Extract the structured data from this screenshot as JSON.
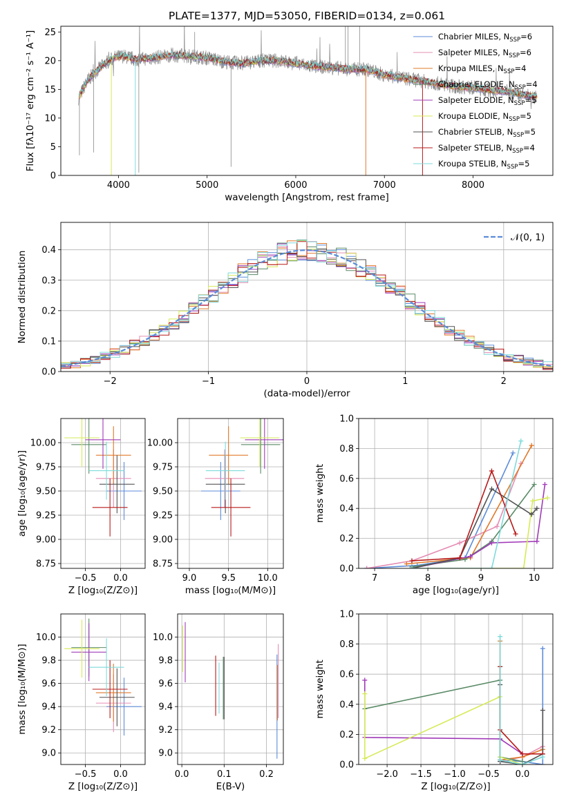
{
  "figure": {
    "title": "PLATE=1377, MJD=53050, FIBERID=0134, z=0.061"
  },
  "colors": {
    "chabrier_miles": "#5b8bd8",
    "salpeter_miles": "#e58cb3",
    "kroupa_miles": "#e07828",
    "chabrier_elodie": "#5a8a66",
    "salpeter_elodie": "#a03ab8",
    "kroupa_elodie": "#d6ea55",
    "chabrier_stelib": "#505050",
    "salpeter_stelib": "#b81818",
    "kroupa_stelib": "#7edada",
    "data": "#888888",
    "normal": "#5b8bd8",
    "grid": "#b0b0b0"
  },
  "chart_data": [
    {
      "id": "spectrum",
      "type": "line",
      "xlabel": "wavelength [Angstrom, rest frame]",
      "ylabel": "Flux [fλ10⁻¹⁷ erg cm⁻² s⁻¹ A⁻¹]",
      "xlim": [
        3350,
        8900
      ],
      "ylim": [
        0,
        26
      ],
      "x_ticks": [
        "4000",
        "5000",
        "6000",
        "7000",
        "8000"
      ],
      "y_ticks": [
        "0",
        "5",
        "10",
        "15",
        "20",
        "25"
      ],
      "grid": false,
      "legend_position": "top-right",
      "legend": [
        {
          "name": "Chabrier MILES",
          "n": "6",
          "color_key": "chabrier_miles"
        },
        {
          "name": "Salpeter MILES",
          "n": "6",
          "color_key": "salpeter_miles"
        },
        {
          "name": "Kroupa MILES",
          "n": "4",
          "color_key": "kroupa_miles"
        },
        {
          "name": "Chabrier ELODIE",
          "n": "4",
          "color_key": "chabrier_elodie"
        },
        {
          "name": "Salpeter ELODIE",
          "n": "5",
          "color_key": "salpeter_elodie"
        },
        {
          "name": "Kroupa ELODIE",
          "n": "5",
          "color_key": "kroupa_elodie"
        },
        {
          "name": "Chabrier STELIB",
          "n": "5",
          "color_key": "chabrier_stelib"
        },
        {
          "name": "Salpeter STELIB",
          "n": "4",
          "color_key": "salpeter_stelib"
        },
        {
          "name": "Kroupa STELIB",
          "n": "5",
          "color_key": "kroupa_stelib"
        }
      ],
      "continuum": [
        [
          3550,
          13.5
        ],
        [
          3650,
          16.5
        ],
        [
          3750,
          18.2
        ],
        [
          3850,
          19.5
        ],
        [
          3950,
          20.5
        ],
        [
          4050,
          20.8
        ],
        [
          4200,
          20.2
        ],
        [
          4400,
          20.5
        ],
        [
          4600,
          21.0
        ],
        [
          4800,
          20.8
        ],
        [
          5000,
          20.5
        ],
        [
          5200,
          19.8
        ],
        [
          5400,
          19.5
        ],
        [
          5600,
          20.0
        ],
        [
          5800,
          20.0
        ],
        [
          6000,
          19.5
        ],
        [
          6200,
          19.0
        ],
        [
          6400,
          18.8
        ],
        [
          6600,
          18.5
        ],
        [
          6800,
          18.5
        ],
        [
          7000,
          17.5
        ],
        [
          7200,
          17.0
        ],
        [
          7400,
          16.5
        ],
        [
          7600,
          16.0
        ],
        [
          7800,
          15.5
        ],
        [
          8000,
          15.3
        ],
        [
          8200,
          14.8
        ],
        [
          8400,
          14.6
        ],
        [
          8600,
          14.0
        ],
        [
          8700,
          13.8
        ]
      ],
      "model_drops": [
        {
          "x": 3920,
          "y": 0,
          "color_key": "kroupa_elodie"
        },
        {
          "x": 4190,
          "y": 0,
          "color_key": "kroupa_stelib"
        },
        {
          "x": 6790,
          "y": 0,
          "color_key": "kroupa_miles"
        },
        {
          "x": 7430,
          "y": 0,
          "color_key": "salpeter_stelib"
        }
      ]
    },
    {
      "id": "residuals",
      "type": "line",
      "xlabel": "(data-model)/error",
      "ylabel": "Normed distribution",
      "xlim": [
        -2.5,
        2.5
      ],
      "ylim": [
        0,
        0.49
      ],
      "x_ticks": [
        "−2",
        "−1",
        "0",
        "1",
        "2"
      ],
      "y_ticks": [
        "0.0",
        "0.1",
        "0.2",
        "0.3",
        "0.4"
      ],
      "grid": true,
      "legend_position": "top-right",
      "legend": [
        {
          "name": "𝒩(0, 1)",
          "style": "dashed",
          "color_key": "normal"
        }
      ],
      "bin_width": 0.1
    },
    {
      "id": "age_vs_Z",
      "type": "scatter",
      "xlabel": "Z [log₁₀(Z/Z⊙)]",
      "ylabel": "age  [log₁₀(age/yr)]",
      "xlim": [
        -0.85,
        0.35
      ],
      "ylim": [
        8.7,
        10.25
      ],
      "x_ticks": [
        "−0.5",
        "0.0"
      ],
      "y_ticks": [
        "8.75",
        "9.00",
        "9.25",
        "9.50",
        "9.75",
        "10.00"
      ],
      "grid": true,
      "points": [
        {
          "x": 0.05,
          "y": 9.5,
          "xerr": 0.5,
          "yerr": 0.3,
          "color_key": "chabrier_miles"
        },
        {
          "x": -0.1,
          "y": 9.63,
          "xerr": 0.5,
          "yerr": 0.3,
          "color_key": "salpeter_miles"
        },
        {
          "x": -0.1,
          "y": 9.87,
          "xerr": 0.5,
          "yerr": 0.3,
          "color_key": "kroupa_miles"
        },
        {
          "x": -0.45,
          "y": 9.98,
          "xerr": 0.5,
          "yerr": 0.3,
          "color_key": "chabrier_elodie"
        },
        {
          "x": -0.25,
          "y": 10.03,
          "xerr": 0.5,
          "yerr": 0.3,
          "color_key": "salpeter_elodie"
        },
        {
          "x": -0.55,
          "y": 10.05,
          "xerr": 0.5,
          "yerr": 0.3,
          "color_key": "kroupa_elodie"
        },
        {
          "x": -0.05,
          "y": 9.57,
          "xerr": 0.5,
          "yerr": 0.3,
          "color_key": "chabrier_stelib"
        },
        {
          "x": -0.15,
          "y": 9.33,
          "xerr": 0.5,
          "yerr": 0.3,
          "color_key": "salpeter_stelib"
        },
        {
          "x": -0.2,
          "y": 9.71,
          "xerr": 0.5,
          "yerr": 0.3,
          "color_key": "kroupa_stelib"
        }
      ]
    },
    {
      "id": "age_vs_mass",
      "type": "scatter",
      "xlabel": "mass [log₁₀(M/M⊙)]",
      "ylabel": "",
      "xlim": [
        8.85,
        10.2
      ],
      "ylim": [
        8.7,
        10.25
      ],
      "x_ticks": [
        "9.0",
        "9.5",
        "10.0"
      ],
      "y_ticks": [
        "8.75",
        "9.00",
        "9.25",
        "9.50",
        "9.75",
        "10.00"
      ],
      "grid": true,
      "points": [
        {
          "x": 9.4,
          "y": 9.5,
          "xerr": 0.5,
          "yerr": 0.3,
          "color_key": "chabrier_miles"
        },
        {
          "x": 9.45,
          "y": 9.63,
          "xerr": 0.5,
          "yerr": 0.3,
          "color_key": "salpeter_miles"
        },
        {
          "x": 9.5,
          "y": 9.87,
          "xerr": 0.5,
          "yerr": 0.3,
          "color_key": "kroupa_miles"
        },
        {
          "x": 9.91,
          "y": 9.98,
          "xerr": 0.5,
          "yerr": 0.3,
          "color_key": "chabrier_elodie"
        },
        {
          "x": 9.96,
          "y": 10.03,
          "xerr": 0.5,
          "yerr": 0.3,
          "color_key": "salpeter_elodie"
        },
        {
          "x": 9.9,
          "y": 10.05,
          "xerr": 0.5,
          "yerr": 0.3,
          "color_key": "kroupa_elodie"
        },
        {
          "x": 9.46,
          "y": 9.57,
          "xerr": 0.5,
          "yerr": 0.3,
          "color_key": "chabrier_stelib"
        },
        {
          "x": 9.53,
          "y": 9.33,
          "xerr": 0.5,
          "yerr": 0.3,
          "color_key": "salpeter_stelib"
        },
        {
          "x": 9.46,
          "y": 9.71,
          "xerr": 0.5,
          "yerr": 0.3,
          "color_key": "kroupa_stelib"
        }
      ]
    },
    {
      "id": "mass_weight_vs_age",
      "type": "line",
      "xlabel": "age  [log₁₀(age/yr)]",
      "ylabel": "mass weight",
      "xlim": [
        6.7,
        10.35
      ],
      "ylim": [
        0,
        1
      ],
      "x_ticks": [
        "7",
        "8",
        "9",
        "10"
      ],
      "y_ticks": [
        "0.0",
        "0.2",
        "0.4",
        "0.6",
        "0.8",
        "1.0"
      ],
      "grid": true,
      "series": [
        {
          "color_key": "chabrier_miles",
          "x": [
            6.85,
            7.8,
            8.7,
            9.6
          ],
          "y": [
            0.0,
            0.02,
            0.07,
            0.77
          ]
        },
        {
          "color_key": "salpeter_miles",
          "x": [
            6.85,
            7.7,
            8.6,
            9.3,
            9.75
          ],
          "y": [
            0.0,
            0.05,
            0.17,
            0.28,
            0.7
          ]
        },
        {
          "color_key": "kroupa_miles",
          "x": [
            7.6,
            8.8,
            9.95
          ],
          "y": [
            0.03,
            0.07,
            0.82
          ]
        },
        {
          "color_key": "chabrier_elodie",
          "x": [
            7.7,
            8.7,
            9.2,
            10.0
          ],
          "y": [
            0.01,
            0.06,
            0.18,
            0.56
          ]
        },
        {
          "color_key": "salpeter_elodie",
          "x": [
            7.7,
            8.8,
            9.2,
            10.05,
            10.2
          ],
          "y": [
            0.0,
            0.08,
            0.17,
            0.18,
            0.56
          ]
        },
        {
          "color_key": "kroupa_elodie",
          "x": [
            7.7,
            9.8,
            9.97,
            10.25
          ],
          "y": [
            0.0,
            0.0,
            0.45,
            0.47
          ]
        },
        {
          "color_key": "chabrier_stelib",
          "x": [
            7.7,
            8.6,
            9.2,
            9.95,
            10.05
          ],
          "y": [
            0.0,
            0.07,
            0.53,
            0.36,
            0.4
          ]
        },
        {
          "color_key": "salpeter_stelib",
          "x": [
            7.7,
            8.6,
            9.2,
            9.65
          ],
          "y": [
            0.05,
            0.07,
            0.65,
            0.23
          ]
        },
        {
          "color_key": "kroupa_stelib",
          "x": [
            7.7,
            9.2,
            9.75
          ],
          "y": [
            0.0,
            0.0,
            0.85
          ]
        }
      ]
    },
    {
      "id": "mass_vs_Z",
      "type": "scatter",
      "xlabel": "Z [log₁₀(Z/Z⊙)]",
      "ylabel": "mass [log₁₀(M/M⊙)]",
      "xlim": [
        -0.85,
        0.35
      ],
      "ylim": [
        8.9,
        10.2
      ],
      "x_ticks": [
        "−0.5",
        "0.0"
      ],
      "y_ticks": [
        "9.0",
        "9.2",
        "9.4",
        "9.6",
        "9.8",
        "10.0"
      ],
      "grid": true,
      "points": [
        {
          "x": 0.05,
          "y": 9.4,
          "xerr": 0.5,
          "yerr": 0.25,
          "color_key": "chabrier_miles"
        },
        {
          "x": -0.1,
          "y": 9.43,
          "xerr": 0.5,
          "yerr": 0.25,
          "color_key": "salpeter_miles"
        },
        {
          "x": -0.1,
          "y": 9.52,
          "xerr": 0.5,
          "yerr": 0.25,
          "color_key": "kroupa_miles"
        },
        {
          "x": -0.45,
          "y": 9.91,
          "xerr": 0.5,
          "yerr": 0.25,
          "color_key": "chabrier_elodie"
        },
        {
          "x": -0.45,
          "y": 9.87,
          "xerr": 0.5,
          "yerr": 0.25,
          "color_key": "salpeter_elodie"
        },
        {
          "x": -0.55,
          "y": 9.9,
          "xerr": 0.5,
          "yerr": 0.25,
          "color_key": "kroupa_elodie"
        },
        {
          "x": -0.05,
          "y": 9.48,
          "xerr": 0.5,
          "yerr": 0.25,
          "color_key": "chabrier_stelib"
        },
        {
          "x": -0.15,
          "y": 9.55,
          "xerr": 0.5,
          "yerr": 0.25,
          "color_key": "salpeter_stelib"
        },
        {
          "x": -0.2,
          "y": 9.74,
          "xerr": 0.5,
          "yerr": 0.25,
          "color_key": "kroupa_stelib"
        }
      ]
    },
    {
      "id": "mass_vs_ebv",
      "type": "scatter",
      "xlabel": "E(B-V)",
      "ylabel": "",
      "xlim": [
        -0.01,
        0.24
      ],
      "ylim": [
        8.9,
        10.2
      ],
      "x_ticks": [
        "0.0",
        "0.1",
        "0.2"
      ],
      "y_ticks": [
        "9.0",
        "9.2",
        "9.4",
        "9.6",
        "9.8",
        "10.0"
      ],
      "grid": true,
      "points": [
        {
          "x": 0.225,
          "y": 9.4,
          "yerr": 0.45,
          "color_key": "chabrier_miles"
        },
        {
          "x": 0.228,
          "y": 9.62,
          "yerr": 0.32,
          "color_key": "salpeter_miles"
        },
        {
          "x": 0.226,
          "y": 9.52,
          "yerr": 0.24,
          "color_key": "kroupa_miles"
        },
        {
          "x": 0.098,
          "y": 9.56,
          "yerr": 0.27,
          "color_key": "chabrier_elodie"
        },
        {
          "x": 0.008,
          "y": 9.87,
          "yerr": 0.26,
          "color_key": "salpeter_elodie"
        },
        {
          "x": 0.002,
          "y": 9.9,
          "yerr": 0.2,
          "color_key": "kroupa_elodie"
        },
        {
          "x": 0.1,
          "y": 9.56,
          "yerr": 0.27,
          "color_key": "chabrier_stelib"
        },
        {
          "x": 0.08,
          "y": 9.58,
          "yerr": 0.26,
          "color_key": "salpeter_stelib"
        },
        {
          "x": 0.088,
          "y": 9.56,
          "yerr": 0.22,
          "color_key": "kroupa_stelib"
        }
      ]
    },
    {
      "id": "mass_weight_vs_Z",
      "type": "line",
      "xlabel": "Z [log₁₀(Z/Z⊙)]",
      "ylabel": "mass weight",
      "xlim": [
        -2.42,
        0.45
      ],
      "ylim": [
        0,
        1
      ],
      "x_ticks": [
        "−2.0",
        "−1.5",
        "−1.0",
        "−0.5",
        "0.0"
      ],
      "y_ticks": [
        "0.0",
        "0.2",
        "0.4",
        "0.6",
        "0.8",
        "1.0"
      ],
      "grid": true,
      "series": [
        {
          "color_key": "chabrier_miles",
          "x": [
            -0.33,
            0.0,
            0.3,
            0.3
          ],
          "y": [
            0.03,
            0.02,
            0.0,
            0.77
          ]
        },
        {
          "color_key": "salpeter_miles",
          "x": [
            -0.33,
            0.0,
            0.3
          ],
          "y": [
            0.02,
            0.05,
            0.12
          ]
        },
        {
          "color_key": "kroupa_miles",
          "x": [
            -0.33,
            -0.33,
            0.0,
            0.3
          ],
          "y": [
            0.82,
            0.03,
            0.05,
            0.1
          ]
        },
        {
          "color_key": "chabrier_elodie",
          "x": [
            -2.33,
            -0.33,
            -0.33,
            0.0
          ],
          "y": [
            0.37,
            0.56,
            0.05,
            0.02
          ]
        },
        {
          "color_key": "salpeter_elodie",
          "x": [
            -2.33,
            -2.33,
            -0.33,
            0.0
          ],
          "y": [
            0.56,
            0.18,
            0.17,
            0.07
          ]
        },
        {
          "color_key": "kroupa_elodie",
          "x": [
            -2.33,
            -2.33,
            -0.33,
            -0.33,
            0.0
          ],
          "y": [
            0.47,
            0.04,
            0.45,
            0.05,
            0.0
          ]
        },
        {
          "color_key": "chabrier_stelib",
          "x": [
            -0.33,
            -0.33,
            0.0,
            0.3,
            0.3
          ],
          "y": [
            0.53,
            0.02,
            0.0,
            0.07,
            0.36
          ]
        },
        {
          "color_key": "salpeter_stelib",
          "x": [
            -0.33,
            -0.33,
            0.0,
            0.3
          ],
          "y": [
            0.65,
            0.23,
            0.07,
            0.07
          ]
        },
        {
          "color_key": "kroupa_stelib",
          "x": [
            -0.33,
            -0.33,
            0.0,
            0.3
          ],
          "y": [
            0.85,
            0.03,
            0.0,
            0.05
          ]
        }
      ]
    }
  ]
}
